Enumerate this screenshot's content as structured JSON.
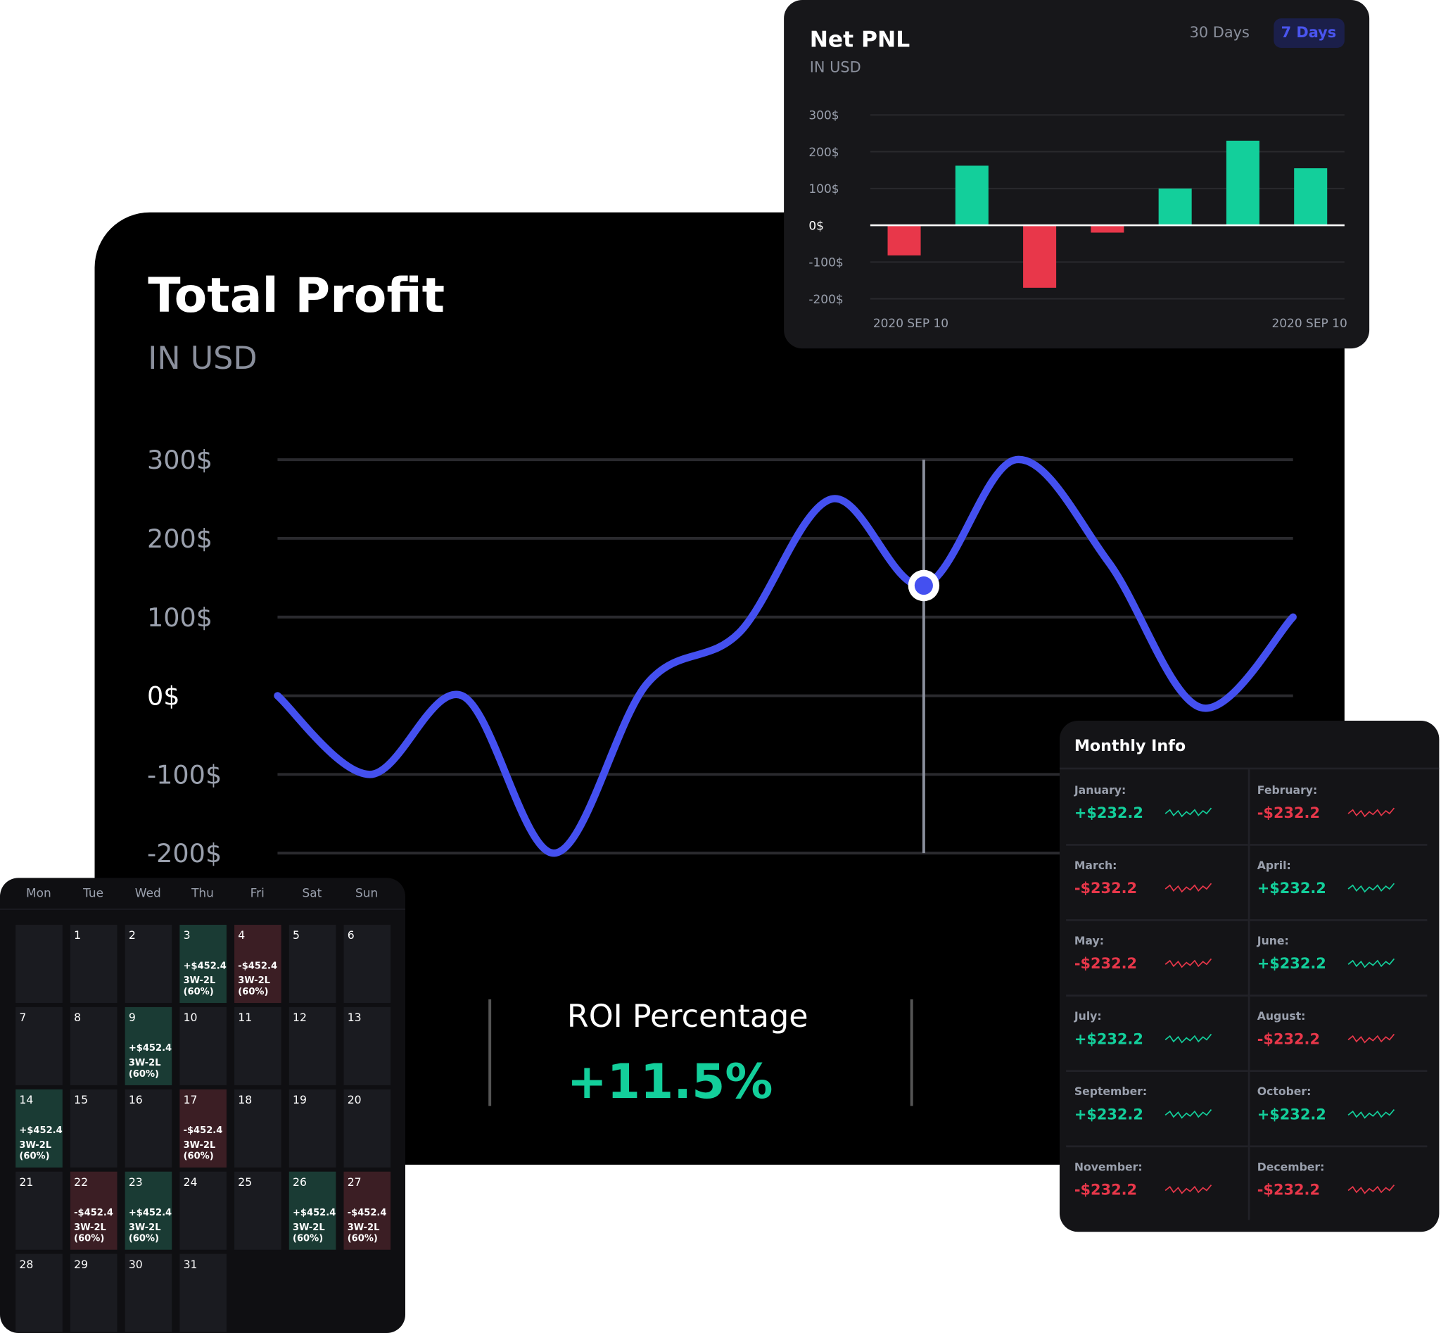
{
  "chart_data": [
    {
      "type": "line",
      "title": "Total Profit",
      "subtitle": "IN USD",
      "color": "#4450f0",
      "values": [
        0,
        -100,
        0,
        -200,
        15,
        80,
        250,
        140,
        300,
        170,
        -15,
        100
      ],
      "ylim": [
        -200,
        300
      ],
      "yticks": [
        {
          "value": -200,
          "label": "-200$"
        },
        {
          "value": -100,
          "label": "-100$"
        },
        {
          "value": 0,
          "label": "0$"
        },
        {
          "value": 100,
          "label": "100$"
        },
        {
          "value": 200,
          "label": "200$"
        },
        {
          "value": 300,
          "label": "300$"
        }
      ],
      "grid": true
    },
    {
      "type": "bar",
      "title": "Net PNL",
      "subtitle": "IN USD",
      "values": [
        -82,
        162,
        -170,
        -20,
        100,
        230,
        155
      ],
      "colors": {
        "positive": "#13cf9b",
        "negative": "#e8374a"
      },
      "ylim": [
        -200,
        300
      ],
      "yticks": [
        {
          "value": -200,
          "label": "-200$"
        },
        {
          "value": -100,
          "label": "-100$"
        },
        {
          "value": 0,
          "label": "0$"
        },
        {
          "value": 100,
          "label": "100$"
        },
        {
          "value": 200,
          "label": "200$"
        },
        {
          "value": 300,
          "label": "300$"
        }
      ],
      "x_labels": [
        "2020 SEP 10",
        "2020 SEP 10"
      ],
      "buttons": [
        "30 Days",
        "7 Days"
      ],
      "grid": true
    }
  ],
  "roi": {
    "label": "ROI Percentage",
    "value": "+11.5%"
  },
  "calendar": {
    "days": [
      "Mon",
      "Tue",
      "Wed",
      "Thu",
      "Fri",
      "Sat",
      "Sun"
    ],
    "cells": [
      {
        "date": "1"
      },
      {
        "date": "2"
      },
      {
        "date": "3",
        "amount": "+$452.4",
        "record": "3W-2L",
        "pct": "(60%)",
        "color": "#1a3b34"
      },
      {
        "date": "4",
        "amount": "-$452.4",
        "record": "3W-2L",
        "pct": "(60%)",
        "color": "#3b1e24"
      },
      {
        "date": "5"
      },
      {
        "date": "6"
      },
      {
        "date": "7"
      },
      {
        "date": "8"
      },
      {
        "date": "9",
        "amount": "+$452.4",
        "record": "3W-2L",
        "pct": "(60%)",
        "color": "#1a3b34"
      },
      {
        "date": "10"
      },
      {
        "date": "11"
      },
      {
        "date": "12"
      },
      {
        "date": "13"
      },
      {
        "date": "14",
        "amount": "+$452.4",
        "record": "3W-2L",
        "pct": "(60%)",
        "color": "#1a3b34"
      },
      {
        "date": "15"
      },
      {
        "date": "16"
      },
      {
        "date": "17",
        "amount": "-$452.4",
        "record": "3W-2L",
        "pct": "(60%)",
        "color": "#3b1e24"
      },
      {
        "date": "18"
      },
      {
        "date": "19"
      },
      {
        "date": "20"
      },
      {
        "date": "21"
      },
      {
        "date": "22",
        "amount": "-$452.4",
        "record": "3W-2L",
        "pct": "(60%)",
        "color": "#3b1e24"
      },
      {
        "date": "23",
        "amount": "+$452.4",
        "record": "3W-2L",
        "pct": "(60%)",
        "color": "#1a3b34"
      },
      {
        "date": "24"
      },
      {
        "date": "25"
      },
      {
        "date": "26",
        "amount": "+$452.4",
        "record": "3W-2L",
        "pct": "(60%)",
        "color": "#1a3b34"
      },
      {
        "date": "27",
        "amount": "-$452.4",
        "record": "3W-2L",
        "pct": "(60%)",
        "color": "#3b1e24"
      },
      {
        "date": "28"
      },
      {
        "date": "29"
      },
      {
        "date": "30"
      },
      {
        "date": "31"
      }
    ]
  },
  "monthly_info": {
    "title": "Monthly Info",
    "months": [
      {
        "name": "January:",
        "value": "+$232.2"
      },
      {
        "name": "February:",
        "value": "-$232.2"
      },
      {
        "name": "March:",
        "value": "-$232.2"
      },
      {
        "name": "April:",
        "value": "+$232.2"
      },
      {
        "name": "May:",
        "value": "-$232.2"
      },
      {
        "name": "June:",
        "value": "+$232.2"
      },
      {
        "name": "July:",
        "value": "+$232.2"
      },
      {
        "name": "August:",
        "value": "-$232.2"
      },
      {
        "name": "September:",
        "value": "+$232.2"
      },
      {
        "name": "October:",
        "value": "+$232.2"
      },
      {
        "name": "November:",
        "value": "-$232.2"
      },
      {
        "name": "December:",
        "value": "-$232.2"
      }
    ]
  }
}
